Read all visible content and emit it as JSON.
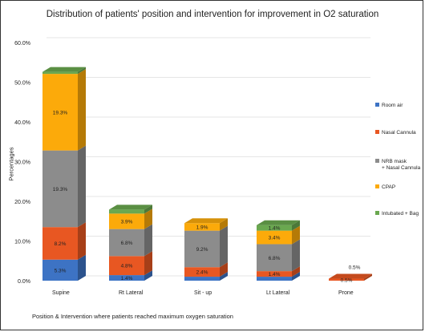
{
  "chart_data": {
    "type": "bar",
    "stacked": true,
    "style": "3d-stacked-column",
    "title": "Distribution of patients' position and intervention for improvement in O2 saturation",
    "xlabel": "Position & Intervention where patients reached maximum oxygen saturation",
    "ylabel": "Percentages",
    "ylim": [
      0,
      60
    ],
    "y_ticks": [
      "0.0%",
      "10.0%",
      "20.0%",
      "30.0%",
      "40.0%",
      "50.0%",
      "60.0%"
    ],
    "grid": true,
    "legend_position": "right",
    "categories": [
      "Supine",
      "Rt Lateral",
      "Sit - up",
      "Lt Lateral",
      "Prone"
    ],
    "series": [
      {
        "name": "Room air",
        "color": "#3d73c4",
        "values": [
          5.3,
          1.4,
          1.0,
          1.0,
          0
        ],
        "labels": [
          "5.3%",
          "1.4%",
          "1.0%",
          "1.0%",
          ""
        ]
      },
      {
        "name": "Nasal Cannula",
        "color": "#e85722",
        "values": [
          8.2,
          4.8,
          2.4,
          1.4,
          0.5
        ],
        "labels": [
          "8.2%",
          "4.8%",
          "2.4%",
          "1.4%",
          "0.5%"
        ]
      },
      {
        "name": "NRB mask\n+ Nasal Cannula",
        "color": "#8c8c8c",
        "values": [
          19.3,
          6.8,
          9.2,
          6.8,
          0
        ],
        "labels": [
          "19.3%",
          "6.8%",
          "9.2%",
          "6.8%",
          ""
        ]
      },
      {
        "name": "CPAP",
        "color": "#fcaa0a",
        "values": [
          19.3,
          3.9,
          1.9,
          3.4,
          0
        ],
        "labels": [
          "19.3%",
          "3.9%",
          "1.9%",
          "3.4%",
          ""
        ]
      },
      {
        "name": "Intubated + Bag",
        "color": "#6aa84f",
        "values": [
          0.5,
          1.0,
          0,
          1.4,
          0
        ],
        "labels": [
          "0.5%",
          "1.0%",
          "",
          "1.4%",
          ""
        ]
      }
    ],
    "prone_top_label": "0.5%"
  }
}
